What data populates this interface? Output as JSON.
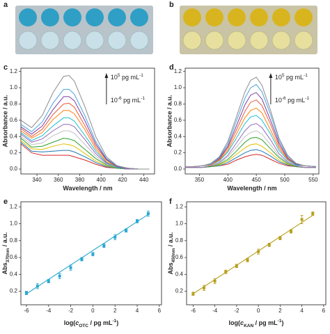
{
  "panel_labels": [
    "a",
    "b",
    "c",
    "d",
    "e",
    "f"
  ],
  "chart_data": [
    {
      "type": "line",
      "x": [
        325,
        335,
        345,
        355,
        365,
        370,
        375,
        385,
        395,
        405,
        415,
        425,
        435,
        445
      ],
      "series": [
        {
          "color": "#d62728",
          "values": [
            0.31,
            0.2,
            0.17,
            0.17,
            0.17,
            0.17,
            0.15,
            0.11,
            0.06,
            0.02,
            0.01,
            0,
            0,
            0
          ]
        },
        {
          "color": "#1f77b4",
          "values": [
            0.33,
            0.22,
            0.21,
            0.22,
            0.23,
            0.23,
            0.21,
            0.15,
            0.08,
            0.03,
            0.01,
            0,
            0,
            0
          ]
        },
        {
          "color": "#e0c000",
          "values": [
            0.35,
            0.25,
            0.24,
            0.28,
            0.31,
            0.3,
            0.28,
            0.19,
            0.1,
            0.04,
            0.01,
            0,
            0,
            0
          ]
        },
        {
          "color": "#2ca02c",
          "values": [
            0.38,
            0.27,
            0.28,
            0.33,
            0.38,
            0.37,
            0.35,
            0.24,
            0.13,
            0.05,
            0.01,
            0,
            0,
            0
          ]
        },
        {
          "color": "#c0c0c0",
          "values": [
            0.4,
            0.3,
            0.32,
            0.41,
            0.47,
            0.47,
            0.44,
            0.3,
            0.16,
            0.06,
            0.02,
            0,
            0,
            0
          ]
        },
        {
          "color": "#9467bd",
          "values": [
            0.43,
            0.33,
            0.37,
            0.47,
            0.55,
            0.55,
            0.52,
            0.36,
            0.19,
            0.07,
            0.02,
            0,
            0,
            0
          ]
        },
        {
          "color": "#17becf",
          "values": [
            0.45,
            0.35,
            0.41,
            0.53,
            0.63,
            0.63,
            0.59,
            0.41,
            0.22,
            0.08,
            0.02,
            0.01,
            0,
            0
          ]
        },
        {
          "color": "#ff7f0e",
          "values": [
            0.47,
            0.38,
            0.45,
            0.61,
            0.72,
            0.72,
            0.68,
            0.48,
            0.25,
            0.09,
            0.03,
            0.01,
            0,
            0
          ]
        },
        {
          "color": "#e8593c",
          "values": [
            0.5,
            0.4,
            0.49,
            0.67,
            0.8,
            0.81,
            0.76,
            0.53,
            0.28,
            0.11,
            0.03,
            0.01,
            0,
            0
          ]
        },
        {
          "color": "#7b3fa0",
          "values": [
            0.52,
            0.43,
            0.53,
            0.73,
            0.89,
            0.89,
            0.84,
            0.59,
            0.31,
            0.12,
            0.03,
            0.01,
            0,
            0
          ]
        },
        {
          "color": "#4aa3df",
          "values": [
            0.55,
            0.46,
            0.58,
            0.81,
            0.98,
            0.98,
            0.92,
            0.65,
            0.34,
            0.13,
            0.04,
            0.01,
            0,
            0
          ]
        },
        {
          "color": "#8c8c8c",
          "values": [
            0.6,
            0.51,
            0.66,
            0.94,
            1.14,
            1.15,
            1.08,
            0.76,
            0.4,
            0.15,
            0.04,
            0.01,
            0,
            0
          ]
        }
      ],
      "xlabel": "Wavelength / nm",
      "ylabel": "Absorbance / a.u.",
      "xlim": [
        325,
        450
      ],
      "xticks": [
        340,
        360,
        380,
        400,
        420,
        440
      ],
      "ylim": [
        -0.06,
        1.24
      ],
      "yticks": [
        {
          "value": 0,
          "label": "0.0"
        },
        0.2,
        0.4,
        0.6,
        0.8,
        {
          "value": 1,
          "label": "1.0"
        },
        1.2
      ],
      "annotation_top": [
        "10",
        "5",
        " pg mL",
        "-1"
      ],
      "annotation_bottom": [
        "10",
        "-6",
        " pg mL",
        "-1"
      ]
    },
    {
      "type": "line",
      "x": [
        325,
        340,
        355,
        370,
        385,
        400,
        415,
        430,
        440,
        450,
        460,
        475,
        490,
        505,
        520,
        535,
        555
      ],
      "series": [
        {
          "color": "#d62728",
          "values": [
            0.02,
            0.02,
            0.02,
            0.03,
            0.04,
            0.06,
            0.11,
            0.15,
            0.17,
            0.18,
            0.17,
            0.12,
            0.07,
            0.04,
            0.03,
            0.02,
            0.02
          ]
        },
        {
          "color": "#1f77b4",
          "values": [
            0.02,
            0.02,
            0.02,
            0.03,
            0.04,
            0.08,
            0.14,
            0.2,
            0.23,
            0.24,
            0.22,
            0.16,
            0.09,
            0.05,
            0.03,
            0.02,
            0.02
          ]
        },
        {
          "color": "#e0c000",
          "values": [
            0.02,
            0.02,
            0.02,
            0.03,
            0.05,
            0.1,
            0.18,
            0.26,
            0.3,
            0.31,
            0.28,
            0.2,
            0.11,
            0.06,
            0.03,
            0.02,
            0.02
          ]
        },
        {
          "color": "#2ca02c",
          "values": [
            0.02,
            0.02,
            0.02,
            0.03,
            0.06,
            0.12,
            0.22,
            0.33,
            0.38,
            0.39,
            0.36,
            0.25,
            0.14,
            0.07,
            0.03,
            0.02,
            0.02
          ]
        },
        {
          "color": "#c0c0c0",
          "values": [
            0.02,
            0.02,
            0.02,
            0.04,
            0.07,
            0.15,
            0.27,
            0.4,
            0.45,
            0.47,
            0.43,
            0.3,
            0.16,
            0.08,
            0.04,
            0.02,
            0.02
          ]
        },
        {
          "color": "#9467bd",
          "values": [
            0.02,
            0.02,
            0.02,
            0.04,
            0.08,
            0.17,
            0.32,
            0.47,
            0.54,
            0.56,
            0.51,
            0.36,
            0.19,
            0.09,
            0.04,
            0.02,
            0.02
          ]
        },
        {
          "color": "#17becf",
          "values": [
            0.03,
            0.03,
            0.04,
            0.05,
            0.1,
            0.21,
            0.38,
            0.56,
            0.64,
            0.66,
            0.6,
            0.43,
            0.23,
            0.11,
            0.05,
            0.04,
            0.03
          ]
        },
        {
          "color": "#ff7f0e",
          "values": [
            0.03,
            0.03,
            0.04,
            0.05,
            0.11,
            0.23,
            0.43,
            0.63,
            0.72,
            0.75,
            0.69,
            0.48,
            0.26,
            0.12,
            0.06,
            0.04,
            0.03
          ]
        },
        {
          "color": "#e8593c",
          "values": [
            0.03,
            0.03,
            0.04,
            0.06,
            0.12,
            0.26,
            0.48,
            0.71,
            0.82,
            0.85,
            0.78,
            0.55,
            0.29,
            0.13,
            0.06,
            0.04,
            0.03
          ]
        },
        {
          "color": "#7b3fa0",
          "values": [
            0.03,
            0.03,
            0.04,
            0.06,
            0.13,
            0.28,
            0.53,
            0.79,
            0.91,
            0.94,
            0.86,
            0.6,
            0.32,
            0.14,
            0.06,
            0.04,
            0.03
          ]
        },
        {
          "color": "#4aa3df",
          "values": [
            0.03,
            0.03,
            0.04,
            0.06,
            0.14,
            0.31,
            0.59,
            0.87,
            1.0,
            1.04,
            0.95,
            0.67,
            0.35,
            0.16,
            0.07,
            0.04,
            0.03
          ]
        },
        {
          "color": "#8c8c8c",
          "values": [
            0.03,
            0.03,
            0.04,
            0.07,
            0.15,
            0.34,
            0.64,
            0.95,
            1.09,
            1.13,
            1.03,
            0.72,
            0.38,
            0.17,
            0.07,
            0.04,
            0.03
          ]
        }
      ],
      "xlabel": "Wavelength / nm",
      "ylabel": "Absorbance / a.u.",
      "xlim": [
        325,
        560
      ],
      "xticks": [
        350,
        400,
        450,
        500,
        550
      ],
      "ylim": [
        -0.06,
        1.24
      ],
      "yticks": [
        {
          "value": 0,
          "label": "0.0"
        },
        0.2,
        0.4,
        0.6,
        0.8,
        {
          "value": 1,
          "label": "1.0"
        },
        1.2
      ],
      "annotation_top": [
        "10",
        "5",
        " pg mL",
        "-1"
      ],
      "annotation_bottom": [
        "10",
        "-6",
        " pg mL",
        "-1"
      ]
    },
    {
      "type": "scatter",
      "x": [
        -6,
        -5,
        -4,
        -3,
        -2,
        -1,
        0,
        1,
        2,
        3,
        4,
        5
      ],
      "series": [
        {
          "color": "#2aa8d0",
          "values": [
            0.18,
            0.26,
            0.32,
            0.38,
            0.48,
            0.58,
            0.64,
            0.74,
            0.84,
            0.92,
            1.03,
            1.12
          ],
          "errors": [
            0.02,
            0.03,
            0.02,
            0.03,
            0.03,
            0.02,
            0.02,
            0.02,
            0.03,
            0.02,
            0.02,
            0.03
          ]
        }
      ],
      "fit": {
        "x": [
          -6,
          5
        ],
        "values": [
          0.17,
          1.11
        ]
      },
      "xlabel": [
        "log(",
        "c",
        "OTC",
        " / pg mL",
        "-1",
        ")"
      ],
      "ylabel": [
        "Abs",
        "370nm",
        " / a.u."
      ],
      "xlim": [
        -6.5,
        6.2
      ],
      "xticks": [
        -6,
        -4,
        -2,
        0,
        2,
        4,
        6
      ],
      "ylim": [
        0.04,
        1.26
      ],
      "yticks": [
        0.2,
        0.4,
        0.6,
        0.8,
        {
          "value": 1,
          "label": "1.0"
        },
        1.2
      ]
    },
    {
      "type": "scatter",
      "x": [
        -6,
        -5,
        -4,
        -3,
        -2,
        -1,
        0,
        1,
        2,
        3,
        4,
        5
      ],
      "series": [
        {
          "color": "#b8a020",
          "values": [
            0.17,
            0.24,
            0.32,
            0.43,
            0.5,
            0.57,
            0.67,
            0.75,
            0.83,
            0.91,
            1.05,
            1.12
          ],
          "errors": [
            0.02,
            0.03,
            0.03,
            0.02,
            0.02,
            0.02,
            0.03,
            0.02,
            0.02,
            0.02,
            0.05,
            0.02
          ]
        }
      ],
      "fit": {
        "x": [
          -6,
          5
        ],
        "values": [
          0.17,
          1.1
        ]
      },
      "xlabel": [
        "log(",
        "c",
        "KAN",
        " / pg mL",
        "-1",
        ")"
      ],
      "ylabel": [
        "Abs",
        "450nm",
        " / a.u."
      ],
      "xlim": [
        -6.6,
        6.2
      ],
      "xticks": [
        -6,
        -4,
        -2,
        0,
        2,
        4,
        6
      ],
      "ylim": [
        0.04,
        1.26
      ],
      "yticks": [
        0.2,
        0.4,
        0.6,
        0.8,
        {
          "value": 1,
          "label": "1.0"
        },
        1.2
      ]
    }
  ]
}
